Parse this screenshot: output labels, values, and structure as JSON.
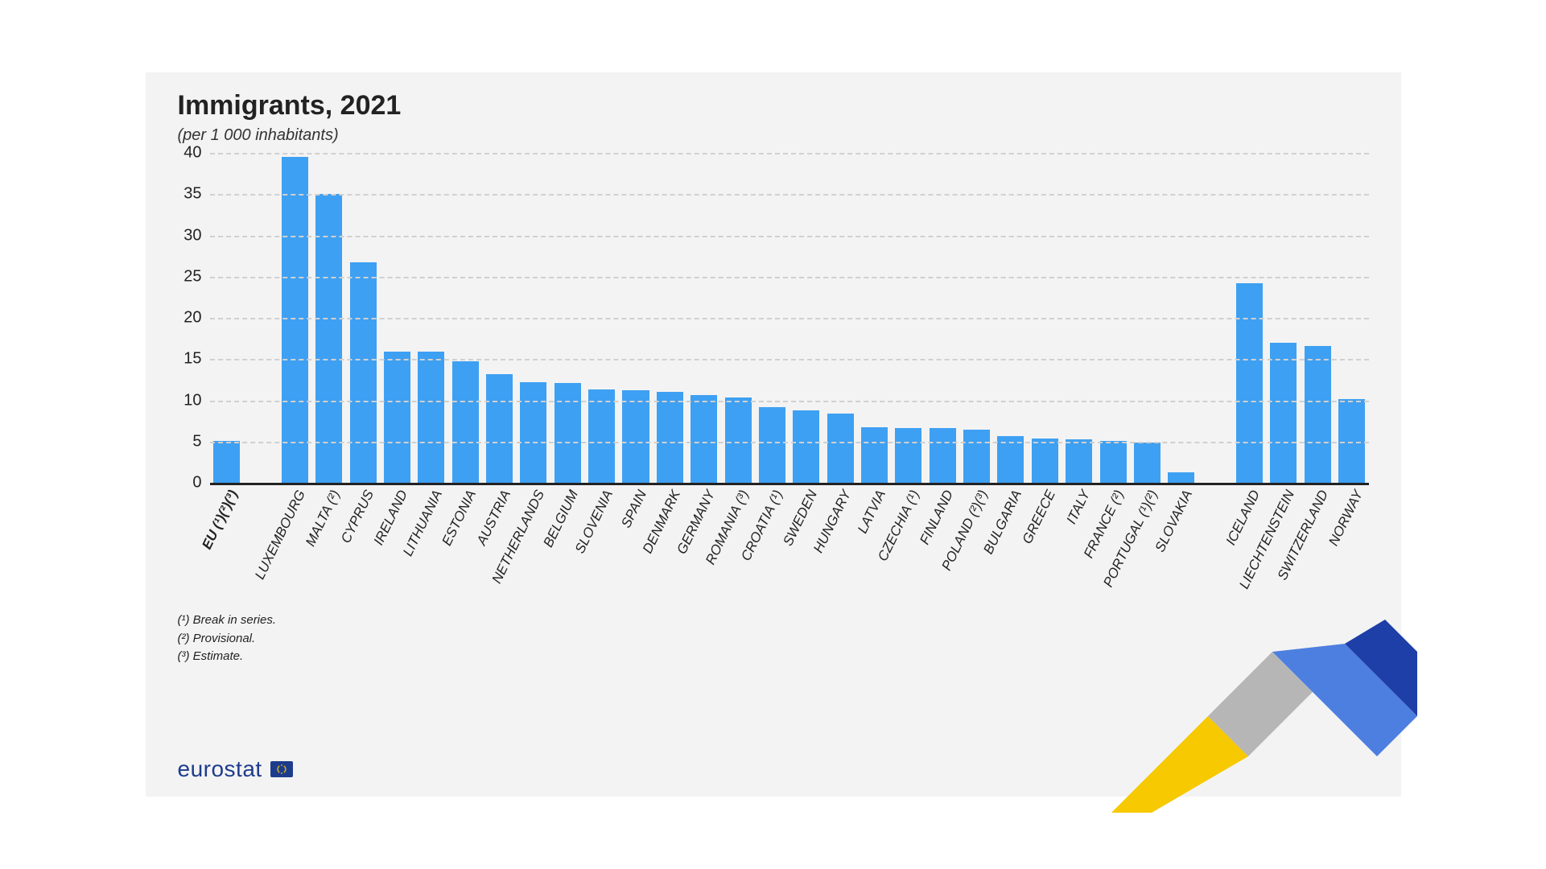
{
  "chart": {
    "type": "bar",
    "title": "Immigrants, 2021",
    "subtitle": "(per 1 000 inhabitants)",
    "title_fontsize": 34,
    "subtitle_fontsize": 20,
    "background_color": "#f3f3f3",
    "grid_color": "#d0d0d0",
    "axis_color": "#222222",
    "tick_fontsize": 20,
    "xlabel_fontsize": 17,
    "xlabel_rotation_deg": -64,
    "ylim": [
      0,
      40
    ],
    "ytick_step": 5,
    "yticks": [
      0,
      5,
      10,
      15,
      20,
      25,
      30,
      35,
      40
    ],
    "bar_color": "#3ea0f2",
    "bar_width": 0.78,
    "categories": [
      "EU (¹)(²)(³)",
      "",
      "LUXEMBOURG",
      "MALTA (²)",
      "CYPRUS",
      "IRELAND",
      "LITHUANIA",
      "ESTONIA",
      "AUSTRIA",
      "NETHERLANDS",
      "BELGIUM",
      "SLOVENIA",
      "SPAIN",
      "DENMARK",
      "GERMANY",
      "ROMANIA (³)",
      "CROATIA (¹)",
      "SWEDEN",
      "HUNGARY",
      "LATVIA",
      "CZECHIA (¹)",
      "FINLAND",
      "POLAND (²)(³)",
      "BULGARIA",
      "GREECE",
      "ITALY",
      "FRANCE (²)",
      "PORTUGAL (¹)(²)",
      "SLOVAKIA",
      "",
      "ICELAND",
      "LIECHTENSTEIN",
      "SWITZERLAND",
      "NORWAY"
    ],
    "bold_categories": [
      0
    ],
    "values": [
      5.1,
      null,
      39.5,
      35.0,
      26.7,
      15.9,
      15.9,
      14.7,
      13.2,
      12.2,
      12.1,
      11.3,
      11.2,
      11.0,
      10.6,
      10.3,
      9.2,
      8.8,
      8.4,
      6.7,
      6.6,
      6.6,
      6.4,
      5.7,
      5.4,
      5.3,
      5.1,
      4.9,
      1.3,
      null,
      24.2,
      17.0,
      16.6,
      10.1
    ]
  },
  "footnotes": [
    "(¹) Break in series.",
    "(²) Provisional.",
    "(³) Estimate."
  ],
  "brand": {
    "name": "eurostat",
    "text_color": "#1e3c8c",
    "swoosh_colors": {
      "yellow": "#f6c900",
      "grey": "#b6b6b6",
      "lightblue": "#4d7fe0",
      "blue": "#1e3fa8"
    }
  }
}
